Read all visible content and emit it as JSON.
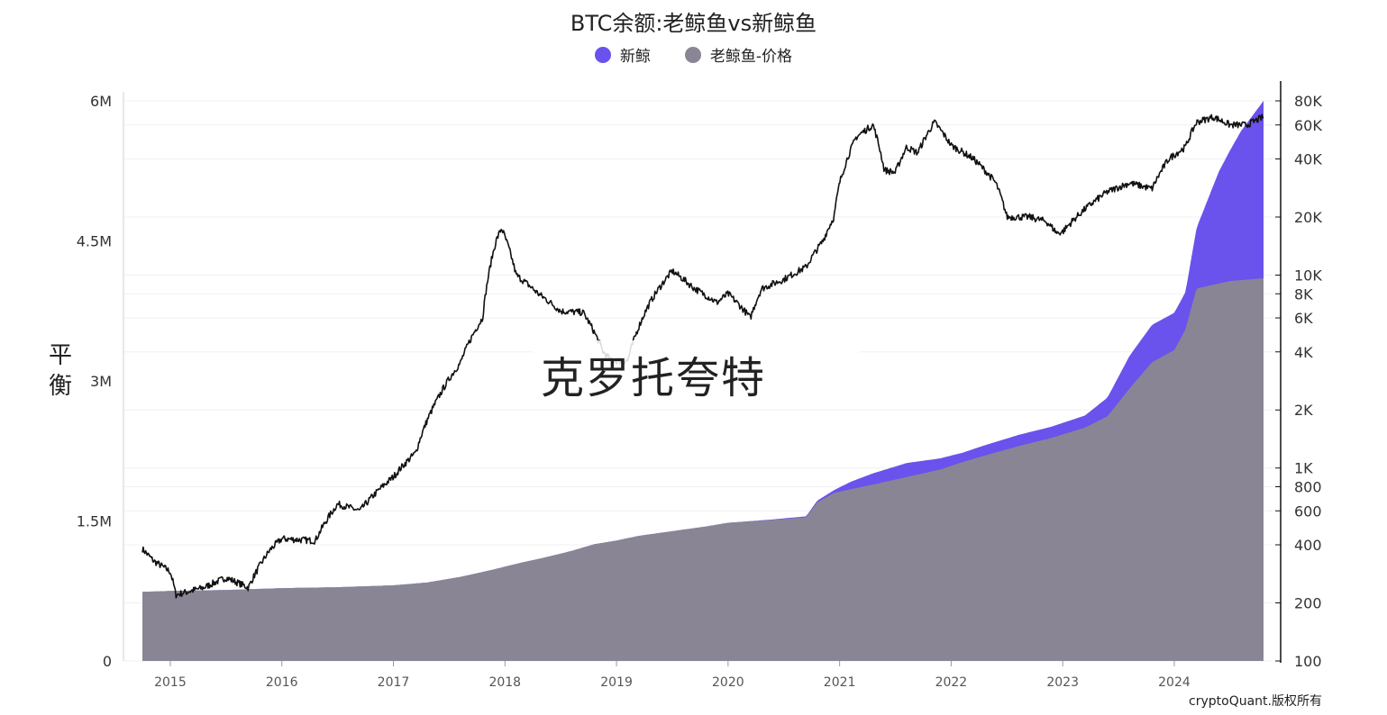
{
  "chart_data": {
    "type": "area",
    "title": "BTC余额:老鲸鱼vs新鲸鱼",
    "ylabel": "平衡",
    "legend": [
      {
        "name": "新鲸",
        "color": "#6a52ec"
      },
      {
        "name": "老鲸鱼-价格",
        "color": "#8a8594"
      }
    ],
    "x_ticks": [
      "2015",
      "2016",
      "2017",
      "2018",
      "2019",
      "2020",
      "2021",
      "2022",
      "2023",
      "2024"
    ],
    "y_left": {
      "ticks": [
        "0",
        "1.5M",
        "3M",
        "4.5M",
        "6M"
      ],
      "values": [
        0,
        1500000,
        3000000,
        4500000,
        6000000
      ],
      "ylim": [
        0,
        6000000
      ]
    },
    "y_right": {
      "scale": "log",
      "ticks": [
        "100",
        "200",
        "400",
        "600",
        "800",
        "1K",
        "2K",
        "4K",
        "6K",
        "8K",
        "10K",
        "20K",
        "40K",
        "60K",
        "80K"
      ],
      "values": [
        100,
        200,
        400,
        600,
        800,
        1000,
        2000,
        4000,
        6000,
        8000,
        10000,
        20000,
        40000,
        60000,
        80000
      ],
      "ylim": [
        100,
        80000
      ]
    },
    "x_range": [
      2014.75,
      2024.8
    ],
    "old_whale_balance": {
      "x": [
        2014.75,
        2015.0,
        2015.5,
        2016.0,
        2016.5,
        2017.0,
        2017.3,
        2017.6,
        2017.9,
        2018.1,
        2018.4,
        2018.6,
        2018.8,
        2019.0,
        2019.2,
        2019.5,
        2019.8,
        2020.0,
        2020.4,
        2020.7,
        2020.8,
        2020.95,
        2021.1,
        2021.3,
        2021.6,
        2021.9,
        2022.1,
        2022.3,
        2022.6,
        2022.9,
        2023.2,
        2023.4,
        2023.6,
        2023.8,
        2024.0,
        2024.1,
        2024.2,
        2024.5,
        2024.8
      ],
      "y": [
        740000,
        750000,
        760000,
        780000,
        790000,
        810000,
        840000,
        900000,
        980000,
        1040000,
        1120000,
        1180000,
        1250000,
        1290000,
        1340000,
        1390000,
        1440000,
        1480000,
        1510000,
        1540000,
        1700000,
        1800000,
        1840000,
        1890000,
        1970000,
        2050000,
        2130000,
        2200000,
        2300000,
        2390000,
        2500000,
        2620000,
        2920000,
        3200000,
        3330000,
        3550000,
        3990000,
        4070000,
        4100000
      ]
    },
    "new_whale_balance": {
      "x": [
        2014.75,
        2020.0,
        2020.7,
        2020.95,
        2021.1,
        2021.3,
        2021.6,
        2021.9,
        2022.1,
        2022.3,
        2022.6,
        2022.9,
        2023.2,
        2023.4,
        2023.6,
        2023.8,
        2024.0,
        2024.1,
        2024.2,
        2024.4,
        2024.6,
        2024.8
      ],
      "y": [
        0,
        0,
        10000,
        30000,
        80000,
        120000,
        150000,
        120000,
        100000,
        110000,
        120000,
        120000,
        130000,
        200000,
        350000,
        400000,
        400000,
        400000,
        650000,
        1200000,
        1600000,
        1900000
      ]
    },
    "price": {
      "x": [
        2014.75,
        2014.85,
        2015.0,
        2015.05,
        2015.3,
        2015.5,
        2015.7,
        2015.9,
        2016.0,
        2016.3,
        2016.5,
        2016.7,
        2017.0,
        2017.2,
        2017.4,
        2017.6,
        2017.8,
        2017.92,
        2017.97,
        2018.1,
        2018.3,
        2018.5,
        2018.7,
        2018.88,
        2018.95,
        2019.1,
        2019.3,
        2019.5,
        2019.7,
        2019.9,
        2020.0,
        2020.2,
        2020.3,
        2020.5,
        2020.7,
        2020.85,
        2020.95,
        2021.0,
        2021.15,
        2021.3,
        2021.4,
        2021.5,
        2021.6,
        2021.7,
        2021.85,
        2022.0,
        2022.2,
        2022.4,
        2022.5,
        2022.7,
        2022.85,
        2022.95,
        2023.0,
        2023.2,
        2023.4,
        2023.6,
        2023.8,
        2023.95,
        2024.1,
        2024.2,
        2024.35,
        2024.5,
        2024.65,
        2024.8
      ],
      "y": [
        380,
        330,
        290,
        220,
        240,
        270,
        240,
        380,
        430,
        420,
        650,
        600,
        900,
        1200,
        2300,
        3500,
        6000,
        15000,
        17500,
        10000,
        8000,
        6500,
        6400,
        4000,
        3600,
        3600,
        7200,
        10500,
        8500,
        7200,
        8000,
        6000,
        8500,
        9500,
        11000,
        15000,
        20000,
        30000,
        52000,
        60000,
        35000,
        34000,
        46000,
        43000,
        62000,
        47000,
        40000,
        30000,
        20000,
        20000,
        19000,
        16500,
        16800,
        22000,
        27000,
        30000,
        28000,
        40000,
        46000,
        62000,
        66000,
        60000,
        60000,
        66000
      ]
    }
  },
  "watermark": "克罗托夸特",
  "footer": "cryptoQuant.版权所有"
}
